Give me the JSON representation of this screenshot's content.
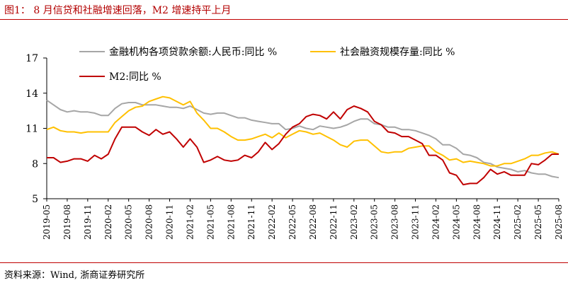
{
  "header": {
    "title": "图1：  8 月信贷和社融增速回落，M2 增速持平上月"
  },
  "footer": {
    "source": "资料来源：Wind, 浙商证券研究所"
  },
  "chart_data": {
    "type": "line",
    "title": "",
    "xlabel": "",
    "ylabel": "",
    "ylim": [
      5,
      17
    ],
    "yticks": [
      5,
      8,
      11,
      14,
      17
    ],
    "xtick_labels": [
      "2019-05",
      "2019-08",
      "2019-11",
      "2020-02",
      "2020-05",
      "2020-08",
      "2020-11",
      "2021-02",
      "2021-05",
      "2021-08",
      "2021-11",
      "2022-02",
      "2022-05",
      "2022-08",
      "2022-11",
      "2023-02",
      "2023-05",
      "2023-08",
      "2023-11",
      "2024-02",
      "2024-05",
      "2024-08",
      "2024-11",
      "2025-02",
      "2025-05",
      "2025-08"
    ],
    "grid": false,
    "legend_position": "top",
    "colors": {
      "loans": "#a6a6a6",
      "tsf": "#ffc000",
      "m2": "#c00000"
    },
    "x": [
      "2019-05",
      "2019-06",
      "2019-07",
      "2019-08",
      "2019-09",
      "2019-10",
      "2019-11",
      "2019-12",
      "2020-01",
      "2020-02",
      "2020-03",
      "2020-04",
      "2020-05",
      "2020-06",
      "2020-07",
      "2020-08",
      "2020-09",
      "2020-10",
      "2020-11",
      "2020-12",
      "2021-01",
      "2021-02",
      "2021-03",
      "2021-04",
      "2021-05",
      "2021-06",
      "2021-07",
      "2021-08",
      "2021-09",
      "2021-10",
      "2021-11",
      "2021-12",
      "2022-01",
      "2022-02",
      "2022-03",
      "2022-04",
      "2022-05",
      "2022-06",
      "2022-07",
      "2022-08",
      "2022-09",
      "2022-10",
      "2022-11",
      "2022-12",
      "2023-01",
      "2023-02",
      "2023-03",
      "2023-04",
      "2023-05",
      "2023-06",
      "2023-07",
      "2023-08",
      "2023-09",
      "2023-10",
      "2023-11",
      "2023-12",
      "2024-01",
      "2024-02",
      "2024-03",
      "2024-04",
      "2024-05",
      "2024-06",
      "2024-07",
      "2024-08",
      "2024-09",
      "2024-10",
      "2024-11",
      "2024-12",
      "2025-01",
      "2025-02",
      "2025-03",
      "2025-04",
      "2025-05",
      "2025-06",
      "2025-07",
      "2025-08"
    ],
    "series": [
      {
        "name": "金融机构各项贷款余额:人民币:同比 %",
        "key": "loans",
        "values": [
          13.4,
          13.0,
          12.6,
          12.4,
          12.5,
          12.4,
          12.4,
          12.3,
          12.1,
          12.1,
          12.7,
          13.1,
          13.2,
          13.2,
          13.0,
          13.0,
          13.0,
          12.9,
          12.8,
          12.8,
          12.7,
          12.9,
          12.6,
          12.3,
          12.2,
          12.3,
          12.3,
          12.1,
          11.9,
          11.9,
          11.7,
          11.6,
          11.5,
          11.4,
          11.4,
          10.9,
          11.0,
          11.2,
          11.0,
          10.9,
          11.2,
          11.1,
          11.0,
          11.1,
          11.3,
          11.6,
          11.8,
          11.8,
          11.4,
          11.3,
          11.1,
          11.1,
          10.9,
          10.9,
          10.8,
          10.6,
          10.4,
          10.1,
          9.6,
          9.6,
          9.3,
          8.8,
          8.7,
          8.5,
          8.1,
          8.0,
          7.7,
          7.6,
          7.5,
          7.3,
          7.4,
          7.2,
          7.1,
          7.1,
          6.9,
          6.8
        ]
      },
      {
        "name": "社会融资规模存量:同比 %",
        "key": "tsf",
        "values": [
          10.9,
          11.1,
          10.8,
          10.7,
          10.7,
          10.6,
          10.7,
          10.7,
          10.7,
          10.7,
          11.5,
          12.0,
          12.5,
          12.8,
          12.9,
          13.3,
          13.5,
          13.7,
          13.6,
          13.3,
          13.0,
          13.3,
          12.3,
          11.7,
          11.0,
          11.0,
          10.7,
          10.3,
          10.0,
          10.0,
          10.1,
          10.3,
          10.5,
          10.2,
          10.6,
          10.2,
          10.5,
          10.8,
          10.7,
          10.5,
          10.6,
          10.3,
          10.0,
          9.6,
          9.4,
          9.9,
          10.0,
          10.0,
          9.5,
          9.0,
          8.9,
          9.0,
          9.0,
          9.3,
          9.4,
          9.5,
          9.5,
          9.0,
          8.7,
          8.3,
          8.4,
          8.1,
          8.2,
          8.1,
          8.0,
          7.8,
          7.8,
          8.0,
          8.0,
          8.2,
          8.4,
          8.7,
          8.7,
          8.9,
          9.0,
          8.8
        ]
      },
      {
        "name": "M2:同比 %",
        "key": "m2",
        "values": [
          8.5,
          8.5,
          8.1,
          8.2,
          8.4,
          8.4,
          8.2,
          8.7,
          8.4,
          8.8,
          10.1,
          11.1,
          11.1,
          11.1,
          10.7,
          10.4,
          10.9,
          10.5,
          10.7,
          10.1,
          9.4,
          10.1,
          9.4,
          8.1,
          8.3,
          8.6,
          8.3,
          8.2,
          8.3,
          8.7,
          8.5,
          9.0,
          9.8,
          9.2,
          9.7,
          10.5,
          11.1,
          11.4,
          12.0,
          12.2,
          12.1,
          11.8,
          12.4,
          11.8,
          12.6,
          12.9,
          12.7,
          12.4,
          11.6,
          11.3,
          10.7,
          10.6,
          10.3,
          10.3,
          10.0,
          9.7,
          8.7,
          8.7,
          8.3,
          7.2,
          7.0,
          6.2,
          6.3,
          6.3,
          6.8,
          7.5,
          7.1,
          7.3,
          7.0,
          7.0,
          7.0,
          8.0,
          7.9,
          8.3,
          8.8,
          8.8
        ]
      }
    ]
  }
}
